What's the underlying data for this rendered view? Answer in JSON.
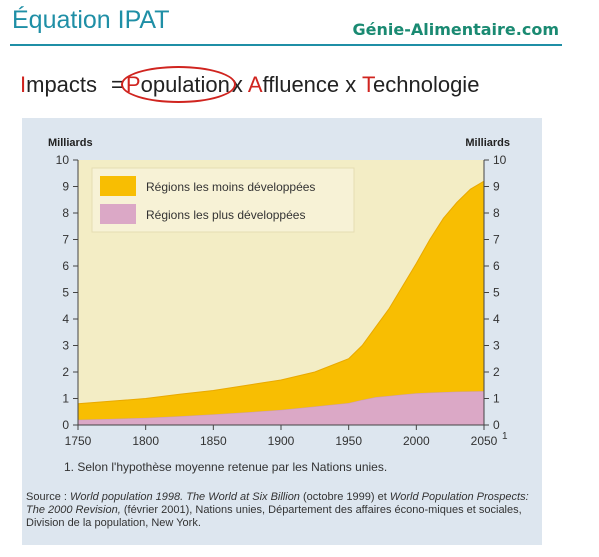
{
  "header": {
    "title": "Équation IPAT",
    "brand": "Génie-Alimentaire.com"
  },
  "equation": {
    "impacts_initial": "I",
    "impacts_rest": "mpacts",
    "equals": "=",
    "population_initial": "P",
    "population_rest": "opulation",
    "times1": "x",
    "affluence_initial": "A",
    "affluence_rest": "ffluence",
    "times2": "x",
    "technologie_initial": "T",
    "technologie_rest": "echnologie"
  },
  "chart_data": {
    "type": "area",
    "stacked": true,
    "x": [
      1750,
      1775,
      1800,
      1825,
      1850,
      1875,
      1900,
      1925,
      1950,
      1960,
      1970,
      1980,
      1990,
      2000,
      2010,
      2020,
      2030,
      2040,
      2050
    ],
    "series": [
      {
        "name": "Régions les plus développées",
        "color": "#dba8c6",
        "values": [
          0.2,
          0.23,
          0.27,
          0.33,
          0.4,
          0.48,
          0.57,
          0.7,
          0.83,
          0.95,
          1.05,
          1.1,
          1.15,
          1.2,
          1.22,
          1.24,
          1.26,
          1.27,
          1.28
        ]
      },
      {
        "name": "Régions les moins développées",
        "color": "#f8be02",
        "values": [
          0.6,
          0.67,
          0.73,
          0.83,
          0.9,
          1.02,
          1.13,
          1.3,
          1.67,
          2.05,
          2.65,
          3.3,
          4.1,
          4.9,
          5.78,
          6.56,
          7.14,
          7.63,
          7.92
        ]
      }
    ],
    "y_label_left": "Milliards",
    "y_label_right": "Milliards",
    "x_ticks": [
      1750,
      1800,
      1850,
      1900,
      1950,
      2000,
      2050
    ],
    "x_tick_labels": [
      "1750",
      "1800",
      "1850",
      "1900",
      "1950",
      "2000",
      "2050"
    ],
    "y_ticks": [
      0,
      1,
      2,
      3,
      4,
      5,
      6,
      7,
      8,
      9,
      10
    ],
    "y_tick_labels": [
      "0",
      "1",
      "2",
      "3",
      "4",
      "5",
      "6",
      "7",
      "8",
      "9",
      "10"
    ],
    "xlim": [
      1750,
      2050
    ],
    "ylim": [
      0,
      10
    ],
    "x_axis_note": "1",
    "legend_position": "top-left",
    "plot_background": "#f3edc5",
    "grid": false,
    "footnote": "1. Selon l'hypothèse moyenne retenue par les Nations unies."
  },
  "source": {
    "label": "Source :",
    "title1": "World population 1998. The World at Six Billion",
    "text1": "(octobre 1999) et",
    "title2": "World Population Prospects: The 2000 Revision,",
    "text2": "(février 2001), Nations unies, Département des affaires écono-miques et sociales, Division de la population, New York."
  }
}
